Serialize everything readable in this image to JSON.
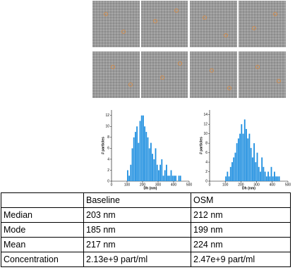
{
  "chart_data": [
    {
      "type": "histogram",
      "xlabel": "Dh (nm)",
      "ylabel": "# particles",
      "color": "#1f8fe0",
      "bins": [
        100,
        110,
        120,
        130,
        140,
        150,
        160,
        170,
        180,
        190,
        200,
        210,
        220,
        230,
        240,
        250,
        260,
        270,
        280,
        290,
        300,
        310,
        320,
        330,
        340,
        350,
        360,
        370,
        380,
        390,
        400,
        410,
        420,
        430,
        440,
        450
      ],
      "values": [
        2,
        1,
        3,
        6,
        8,
        9,
        10,
        7,
        11,
        12,
        12,
        10,
        9,
        8,
        6,
        7,
        5,
        4,
        6,
        3,
        2,
        3,
        4,
        1,
        2,
        3,
        1,
        1,
        2,
        1,
        1,
        1,
        0,
        1,
        1
      ],
      "xlim": [
        0,
        500
      ],
      "xticks": [
        0,
        100,
        200,
        300,
        400,
        500
      ],
      "ylim": [
        0,
        13
      ],
      "yticks": [
        0,
        2,
        4,
        6,
        8,
        10,
        12
      ]
    },
    {
      "type": "histogram",
      "xlabel": "Dh (nm)",
      "ylabel": "# particles",
      "color": "#1f8fe0",
      "bins": [
        100,
        110,
        120,
        130,
        140,
        150,
        160,
        170,
        180,
        190,
        200,
        210,
        220,
        230,
        240,
        250,
        260,
        270,
        280,
        290,
        300,
        310,
        320,
        330,
        340,
        350,
        360,
        370,
        380,
        390,
        400,
        410,
        420,
        430,
        440,
        450
      ],
      "values": [
        1,
        2,
        1,
        3,
        4,
        5,
        6,
        8,
        9,
        10,
        12,
        10,
        13,
        11,
        9,
        10,
        7,
        5,
        8,
        4,
        6,
        3,
        2,
        5,
        3,
        2,
        1,
        2,
        1,
        3,
        1,
        2,
        1,
        1,
        1
      ],
      "xlim": [
        0,
        500
      ],
      "xticks": [
        0,
        100,
        200,
        300,
        400,
        500
      ],
      "ylim": [
        0,
        15
      ],
      "yticks": [
        0,
        2,
        4,
        6,
        8,
        10,
        12,
        14
      ]
    }
  ],
  "table": {
    "header": [
      "Baseline",
      "OSM"
    ],
    "rows": [
      [
        "Median",
        "203 nm",
        "212 nm"
      ],
      [
        "Mode",
        "185 nm",
        "199 nm"
      ],
      [
        "Mean",
        "217 nm",
        "224 nm"
      ],
      [
        "Concentration",
        "2.13e+9 part/ml",
        "2.47e+9 part/ml"
      ]
    ]
  }
}
